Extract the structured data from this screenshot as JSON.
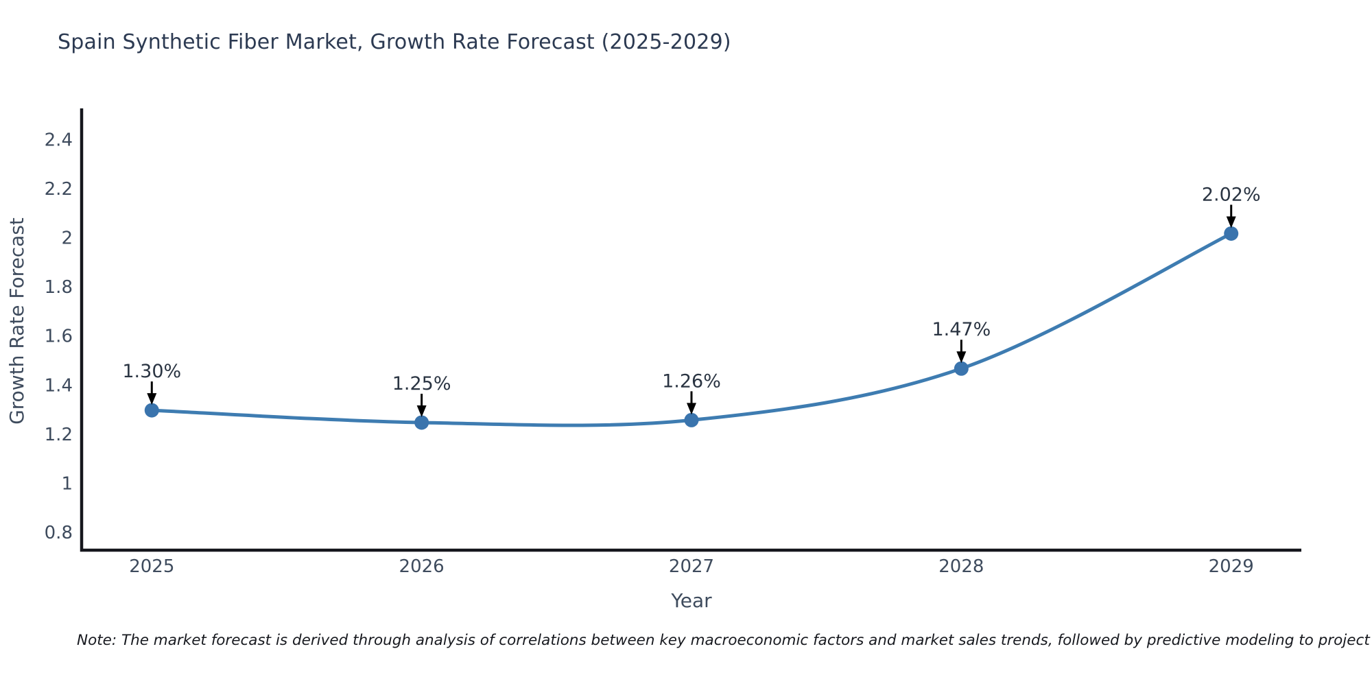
{
  "page": {
    "title": "Spain Synthetic Fiber Market, Growth Rate Forecast (2025-2029)",
    "note": "Note: The market forecast is derived through analysis of correlations between key macroeconomic factors and market sales trends, followed by predictive modeling to project future sales"
  },
  "chart_data": {
    "type": "line",
    "title": "Spain Synthetic Fiber Market, Growth Rate Forecast (2025-2029)",
    "xlabel": "Year",
    "ylabel": "Growth Rate Forecast",
    "x": [
      2025,
      2026,
      2027,
      2028,
      2029
    ],
    "xtick_labels": [
      "2025",
      "2026",
      "2027",
      "2028",
      "2029"
    ],
    "series": [
      {
        "name": "Growth Rate Forecast",
        "values": [
          1.3,
          1.25,
          1.26,
          1.47,
          2.02
        ]
      }
    ],
    "point_labels": [
      "1.30%",
      "1.25%",
      "1.26%",
      "1.47%",
      "2.02%"
    ],
    "ytick_values": [
      0.8,
      1,
      1.2,
      1.4,
      1.6,
      1.8,
      2,
      2.2,
      2.4
    ],
    "ytick_labels": [
      "0.8",
      "1",
      "1.2",
      "1.4",
      "1.6",
      "1.8",
      "2",
      "2.2",
      "2.4"
    ],
    "xlim": [
      2024.74,
      2029.26
    ],
    "ylim": [
      0.73,
      2.53
    ],
    "grid": false,
    "legend_position": "none",
    "curve": "smooth",
    "colors": {
      "line": "#3e7cb1",
      "marker": "#3a74ad",
      "arrow": "#000000",
      "axis": "#15161c",
      "title_text": "#2c3a52",
      "tick_text": "#3e4b5d"
    }
  }
}
